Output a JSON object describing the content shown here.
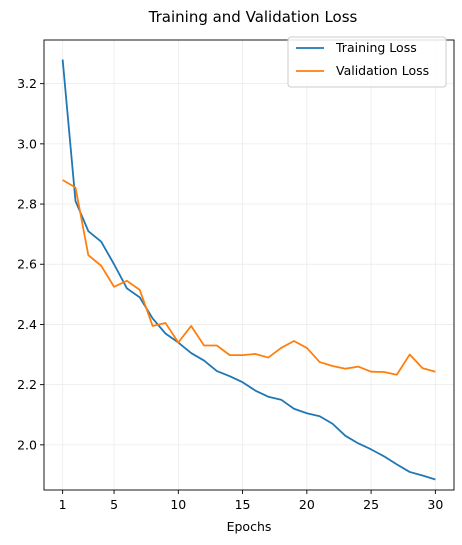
{
  "chart_data": {
    "type": "line",
    "title": "Training and Validation Loss",
    "xlabel": "Epochs",
    "ylabel": "",
    "xlim": [
      -0.45,
      31.45
    ],
    "ylim": [
      1.85,
      3.345
    ],
    "xticks": [
      1,
      5,
      10,
      15,
      20,
      25,
      30
    ],
    "yticks": [
      2.0,
      2.2,
      2.4,
      2.6,
      2.8,
      3.0,
      3.2
    ],
    "ytick_labels": [
      "2.0",
      "2.2",
      "2.4",
      "2.6",
      "2.8",
      "3.0",
      "3.2"
    ],
    "grid": true,
    "legend_position": "top-right",
    "x": [
      1,
      2,
      3,
      4,
      5,
      6,
      7,
      8,
      9,
      10,
      11,
      12,
      13,
      14,
      15,
      16,
      17,
      18,
      19,
      20,
      21,
      22,
      23,
      24,
      25,
      26,
      27,
      28,
      29,
      30
    ],
    "series": [
      {
        "name": "Training Loss",
        "color": "#1f77b4",
        "values": [
          3.28,
          2.81,
          2.71,
          2.675,
          2.6,
          2.52,
          2.49,
          2.42,
          2.37,
          2.34,
          2.305,
          2.28,
          2.245,
          2.228,
          2.208,
          2.18,
          2.16,
          2.15,
          2.12,
          2.105,
          2.095,
          2.07,
          2.03,
          2.005,
          1.985,
          1.962,
          1.935,
          1.91,
          1.898,
          1.885
        ]
      },
      {
        "name": "Validation Loss",
        "color": "#ff7f0e",
        "values": [
          2.88,
          2.855,
          2.63,
          2.595,
          2.525,
          2.545,
          2.515,
          2.395,
          2.405,
          2.34,
          2.395,
          2.33,
          2.33,
          2.298,
          2.298,
          2.302,
          2.29,
          2.322,
          2.345,
          2.322,
          2.275,
          2.262,
          2.253,
          2.26,
          2.243,
          2.242,
          2.233,
          2.3,
          2.255,
          2.243
        ]
      }
    ]
  }
}
